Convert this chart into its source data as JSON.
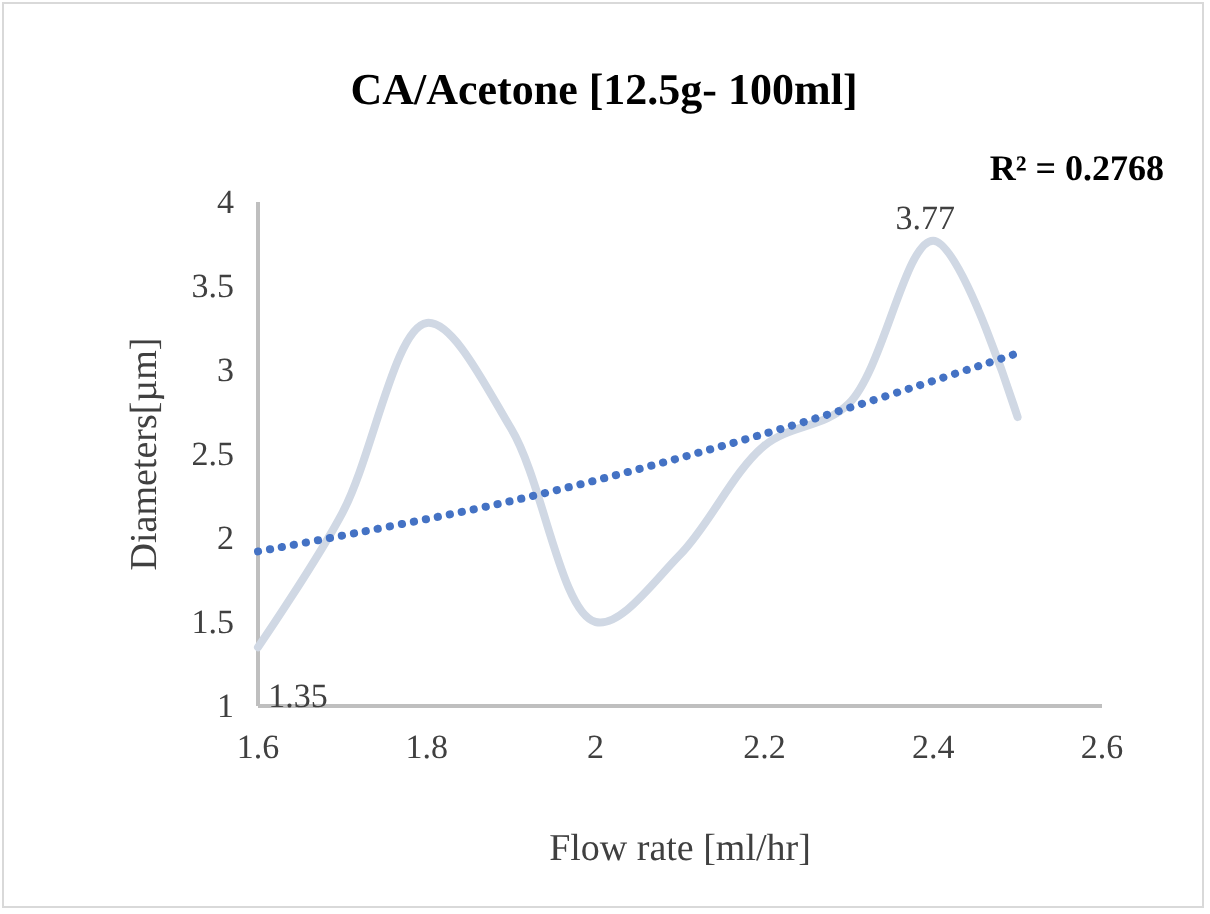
{
  "chart_data": {
    "type": "line",
    "title": "CA/Acetone [12.5g- 100ml]",
    "xlabel": "Flow rate [ml/hr]",
    "ylabel": "Diameters[µm]",
    "annotations": [
      "R² = 0.2768"
    ],
    "xlim": [
      1.6,
      2.6
    ],
    "xticks": [
      1.6,
      1.8,
      2,
      2.2,
      2.4,
      2.6
    ],
    "ylim": [
      1,
      4
    ],
    "yticks": [
      1,
      1.5,
      2,
      2.5,
      3,
      3.5,
      4
    ],
    "grid": false,
    "series": [
      {
        "color": "#d0d8e4",
        "x": [
          1.6,
          1.7,
          1.8,
          1.9,
          2.0,
          2.1,
          2.2,
          2.3,
          2.4,
          2.5
        ],
        "values": [
          1.35,
          2.15,
          3.28,
          2.65,
          1.5,
          1.9,
          2.55,
          2.8,
          3.77,
          2.72
        ],
        "value_labels": [
          "1.35",
          null,
          null,
          null,
          null,
          null,
          null,
          null,
          "3.77",
          null
        ]
      },
      {
        "color": "#4472c4",
        "line_style": "dotted",
        "x": [
          1.6,
          1.9,
          2.2,
          2.5
        ],
        "values": [
          1.92,
          2.22,
          2.62,
          3.1
        ]
      }
    ]
  }
}
